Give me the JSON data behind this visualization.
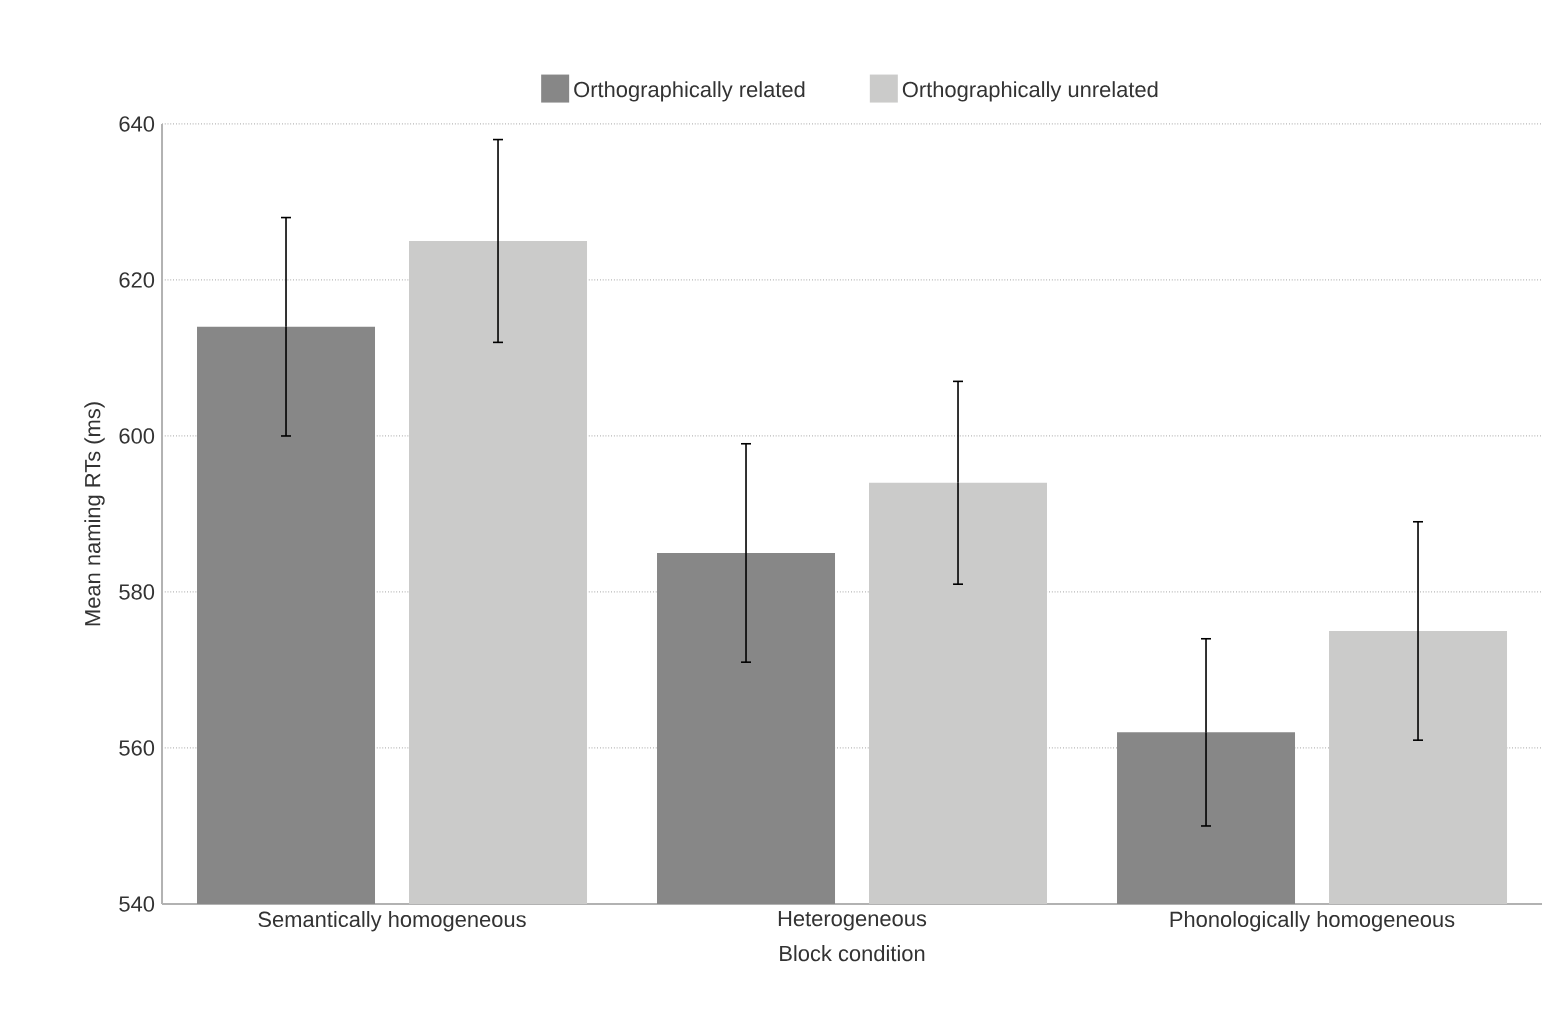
{
  "chart_data": {
    "type": "bar",
    "xlabel": "Block condition",
    "ylabel": "Mean naming RTs (ms)",
    "categories": [
      "Semantically homogeneous",
      "Heterogeneous",
      "Phonologically homogeneous"
    ],
    "series": [
      {
        "name": "Orthographically related",
        "color": "#878787",
        "values": [
          614,
          585,
          562
        ],
        "errors": [
          14,
          14,
          12
        ]
      },
      {
        "name": "Orthographically unrelated",
        "color": "#cbcbca",
        "values": [
          625,
          594,
          575
        ],
        "errors": [
          13,
          13,
          14
        ]
      }
    ],
    "ylim": [
      540,
      640
    ],
    "yticks": [
      540,
      560,
      580,
      600,
      620,
      640
    ],
    "grid": "y",
    "legend": "top"
  }
}
